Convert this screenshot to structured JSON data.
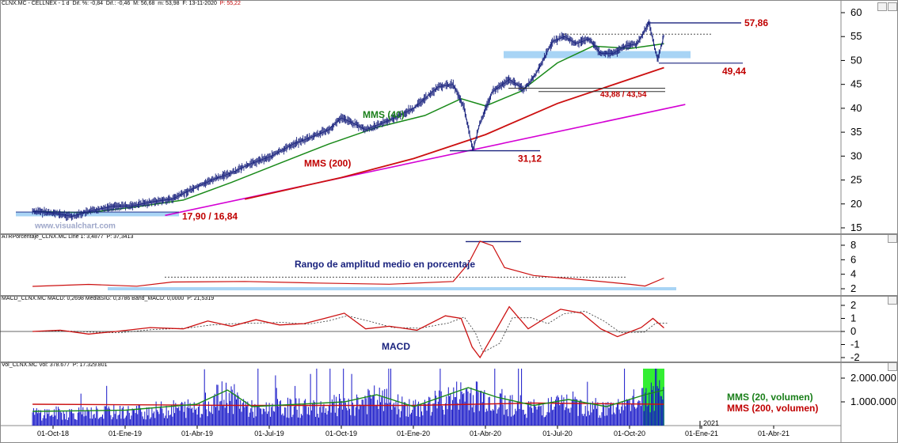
{
  "price_header": {
    "title": "CLNX.MC - CELLNEX - 1 d",
    "dif_pct": "Dif. %: -0,84",
    "dif": "Dif.: -0,46",
    "m": "M: 56,68",
    "m2": "m: 53,98",
    "date": "F: 13-11-2020",
    "p": "P: 55,22"
  },
  "atr_header": {
    "text": "ATRPorcentaje_CLNX.MC Line 1: 3,4877",
    "p": "P: 37,3413"
  },
  "macd_header": {
    "text": "MACD_CLNX.MC MACD: 0,2698 MediaSIG: 0,3786 Band_MACD: 0,0000",
    "p": "P: 21,5319"
  },
  "vol_header": {
    "text": "Vol_CLNX.MC Vol: 378.677",
    "p": "P: 17.329.801"
  },
  "annotations": {
    "high": "57,86",
    "support": "49,44",
    "range": "43,88 / 43,54",
    "low": "31,12",
    "start": "17,90 / 16,84",
    "mms40": "MMS (40)",
    "mms200": "MMS (200)",
    "watermark": "www.visualchart.com",
    "atr_title": "Rango de amplitud medio en porcentaje",
    "macd_title": "MACD",
    "vol_mms20": "MMS (20, volumen)",
    "vol_mms200": "MMS (200, volumen)",
    "year_label": "2021"
  },
  "colors": {
    "price": "#1a237e",
    "mms40": "#1a8a1a",
    "mms200": "#cc1010",
    "trendline": "#d400d4",
    "highlight": "#a8d4f5",
    "volume": "#1515c8",
    "volume_highlight": "#33ee33"
  },
  "chart_data": [
    {
      "type": "line",
      "name": "price",
      "x_labels": [
        "01-Oct-18",
        "01-Ene-19",
        "01-Abr-19",
        "01-Jul-19",
        "01-Oct-19",
        "01-Ene-20",
        "01-Abr-20",
        "01-Jul-20",
        "01-Oct-20",
        "01-Ene-21",
        "01-Abr-21"
      ],
      "ylim": [
        15,
        60
      ],
      "yticks": [
        15,
        20,
        25,
        30,
        35,
        40,
        45,
        50,
        55,
        60
      ],
      "series": [
        {
          "name": "Price",
          "points": [
            [
              "2018-09-05",
              18.5
            ],
            [
              "2018-10-01",
              18.1
            ],
            [
              "2018-10-25",
              17.4
            ],
            [
              "2018-11-20",
              18.6
            ],
            [
              "2018-12-15",
              19.5
            ],
            [
              "2019-01-10",
              19.6
            ],
            [
              "2019-02-05",
              20.5
            ],
            [
              "2019-03-01",
              21.0
            ],
            [
              "2019-03-25",
              23.0
            ],
            [
              "2019-04-20",
              25.0
            ],
            [
              "2019-05-15",
              26.5
            ],
            [
              "2019-06-10",
              28.5
            ],
            [
              "2019-07-05",
              30.0
            ],
            [
              "2019-08-01",
              32.5
            ],
            [
              "2019-08-25",
              34.0
            ],
            [
              "2019-09-15",
              35.5
            ],
            [
              "2019-10-01",
              38.0
            ],
            [
              "2019-10-15",
              37.0
            ],
            [
              "2019-11-01",
              35.5
            ],
            [
              "2019-12-01",
              37.5
            ],
            [
              "2020-01-01",
              40.0
            ],
            [
              "2020-02-01",
              44.5
            ],
            [
              "2020-02-20",
              45.0
            ],
            [
              "2020-03-05",
              40.0
            ],
            [
              "2020-03-16",
              31.12
            ],
            [
              "2020-03-25",
              37.0
            ],
            [
              "2020-04-10",
              43.5
            ],
            [
              "2020-05-01",
              46.0
            ],
            [
              "2020-05-20",
              44.0
            ],
            [
              "2020-06-05",
              47.5
            ],
            [
              "2020-06-25",
              54.0
            ],
            [
              "2020-07-10",
              55.0
            ],
            [
              "2020-07-25",
              53.5
            ],
            [
              "2020-08-10",
              54.5
            ],
            [
              "2020-08-25",
              51.5
            ],
            [
              "2020-09-10",
              51.5
            ],
            [
              "2020-09-25",
              53.0
            ],
            [
              "2020-10-10",
              53.5
            ],
            [
              "2020-10-25",
              57.86
            ],
            [
              "2020-11-05",
              50.0
            ],
            [
              "2020-11-13",
              55.22
            ]
          ]
        },
        {
          "name": "MMS (40)",
          "points": [
            [
              "2018-09-05",
              18.4
            ],
            [
              "2018-11-15",
              18.2
            ],
            [
              "2019-01-15",
              19.4
            ],
            [
              "2019-03-15",
              20.8
            ],
            [
              "2019-05-15",
              24.5
            ],
            [
              "2019-07-15",
              28.5
            ],
            [
              "2019-09-15",
              32.5
            ],
            [
              "2019-11-15",
              36.0
            ],
            [
              "2020-01-15",
              38.5
            ],
            [
              "2020-03-01",
              42.0
            ],
            [
              "2020-04-01",
              40.5
            ],
            [
              "2020-05-15",
              43.5
            ],
            [
              "2020-07-01",
              49.5
            ],
            [
              "2020-08-15",
              53.0
            ],
            [
              "2020-10-01",
              52.5
            ],
            [
              "2020-11-13",
              53.5
            ]
          ]
        },
        {
          "name": "MMS (200)",
          "points": [
            [
              "2019-06-01",
              21.0
            ],
            [
              "2019-10-01",
              25.5
            ],
            [
              "2020-01-01",
              29.5
            ],
            [
              "2020-04-01",
              34.5
            ],
            [
              "2020-07-01",
              41.0
            ],
            [
              "2020-11-13",
              48.5
            ]
          ]
        }
      ],
      "trendline": [
        [
          "2019-02-20",
          17.6
        ],
        [
          "2020-12-10",
          40.8
        ]
      ],
      "levels": [
        {
          "label": "57,86",
          "value": 57.86
        },
        {
          "label": "49,44",
          "value": 49.44
        },
        {
          "label": "43,88 / 43,54",
          "value": 43.88
        },
        {
          "label": "31,12",
          "value": 31.12
        },
        {
          "label": "17,90 / 16,84",
          "value": 17.9
        }
      ]
    },
    {
      "type": "line",
      "name": "ATR %",
      "ylim": [
        2,
        8
      ],
      "yticks": [
        2,
        4,
        6,
        8
      ],
      "series": [
        {
          "name": "ATR",
          "points": [
            [
              "2018-09-05",
              2.4
            ],
            [
              "2018-11-15",
              2.6
            ],
            [
              "2019-01-15",
              2.4
            ],
            [
              "2019-03-01",
              2.9
            ],
            [
              "2019-06-01",
              3.0
            ],
            [
              "2019-09-01",
              2.8
            ],
            [
              "2019-12-01",
              2.7
            ],
            [
              "2020-02-20",
              3.0
            ],
            [
              "2020-03-10",
              5.5
            ],
            [
              "2020-03-25",
              8.5
            ],
            [
              "2020-04-10",
              8.0
            ],
            [
              "2020-04-25",
              5.0
            ],
            [
              "2020-06-01",
              3.8
            ],
            [
              "2020-08-01",
              3.2
            ],
            [
              "2020-10-01",
              2.6
            ],
            [
              "2020-10-20",
              2.3
            ],
            [
              "2020-11-13",
              3.5
            ]
          ]
        }
      ]
    },
    {
      "type": "line",
      "name": "MACD",
      "ylim": [
        -2,
        2
      ],
      "yticks": [
        -2,
        -1,
        0,
        1,
        2
      ],
      "series": [
        {
          "name": "MACD",
          "points": [
            [
              "2018-09-05",
              0.0
            ],
            [
              "2018-10-10",
              0.1
            ],
            [
              "2018-11-15",
              -0.2
            ],
            [
              "2018-12-20",
              0.0
            ],
            [
              "2019-02-01",
              0.3
            ],
            [
              "2019-03-15",
              0.2
            ],
            [
              "2019-04-15",
              0.8
            ],
            [
              "2019-05-15",
              0.4
            ],
            [
              "2019-06-15",
              0.9
            ],
            [
              "2019-07-15",
              0.5
            ],
            [
              "2019-08-15",
              0.6
            ],
            [
              "2019-09-10",
              1.0
            ],
            [
              "2019-10-05",
              1.4
            ],
            [
              "2019-11-01",
              0.2
            ],
            [
              "2019-12-01",
              0.4
            ],
            [
              "2020-01-05",
              0.1
            ],
            [
              "2020-02-10",
              1.2
            ],
            [
              "2020-03-01",
              1.0
            ],
            [
              "2020-03-15",
              -1.2
            ],
            [
              "2020-03-25",
              -2.0
            ],
            [
              "2020-04-15",
              0.2
            ],
            [
              "2020-05-01",
              1.9
            ],
            [
              "2020-05-25",
              0.2
            ],
            [
              "2020-06-15",
              1.0
            ],
            [
              "2020-07-05",
              1.7
            ],
            [
              "2020-08-01",
              1.4
            ],
            [
              "2020-08-25",
              0.2
            ],
            [
              "2020-09-15",
              -0.4
            ],
            [
              "2020-10-15",
              0.3
            ],
            [
              "2020-10-30",
              1.0
            ],
            [
              "2020-11-13",
              0.27
            ]
          ]
        }
      ]
    },
    {
      "type": "bar",
      "name": "Volume",
      "ylim": [
        0,
        2500000
      ],
      "yticks": [
        1000000,
        2000000
      ],
      "ytick_labels": [
        "1.000.000",
        "2.000.000"
      ],
      "series": [
        {
          "name": "MMS (20, volumen)",
          "points": [
            [
              "2018-09-05",
              600000
            ],
            [
              "2019-01-01",
              650000
            ],
            [
              "2019-04-01",
              900000
            ],
            [
              "2019-05-10",
              1500000
            ],
            [
              "2019-06-10",
              800000
            ],
            [
              "2019-10-05",
              1000000
            ],
            [
              "2019-11-15",
              1300000
            ],
            [
              "2020-01-01",
              800000
            ],
            [
              "2020-03-10",
              1600000
            ],
            [
              "2020-04-15",
              1200000
            ],
            [
              "2020-06-01",
              850000
            ],
            [
              "2020-07-15",
              1100000
            ],
            [
              "2020-09-01",
              800000
            ],
            [
              "2020-10-20",
              1300000
            ],
            [
              "2020-11-13",
              1500000
            ]
          ]
        },
        {
          "name": "MMS (200, volumen)",
          "points": [
            [
              "2018-09-05",
              900000
            ],
            [
              "2019-06-01",
              850000
            ],
            [
              "2020-01-01",
              850000
            ],
            [
              "2020-06-01",
              950000
            ],
            [
              "2020-11-13",
              900000
            ]
          ]
        }
      ]
    }
  ]
}
